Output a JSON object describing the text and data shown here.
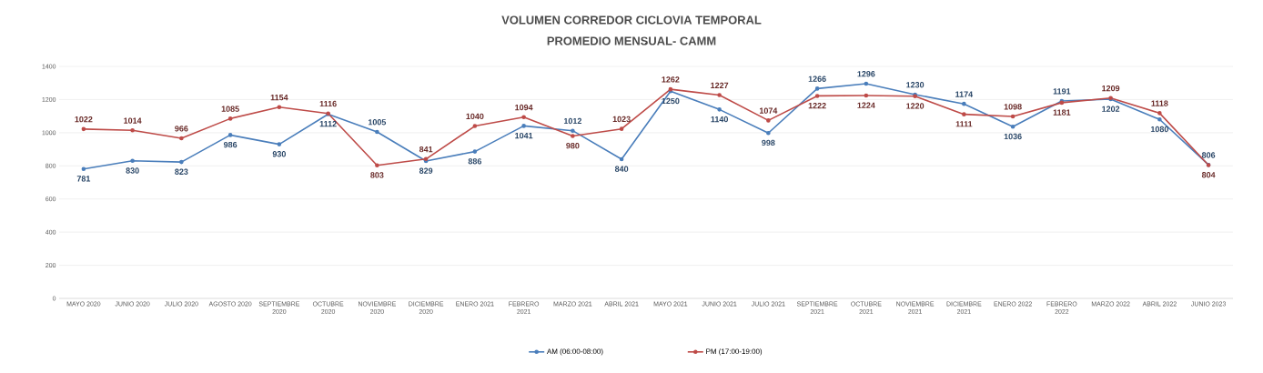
{
  "chart_data": {
    "type": "line",
    "title": "VOLUMEN CORREDOR CICLOVIA TEMPORAL",
    "subtitle": "PROMEDIO MENSUAL- CAMM",
    "categories": [
      "MAYO 2020",
      "JUNIO 2020",
      "JULIO 2020",
      "AGOSTO 2020",
      "SEPTIEMBRE 2020",
      "OCTUBRE 2020",
      "NOVIEMBRE 2020",
      "DICIEMBRE 2020",
      "ENERO 2021",
      "FEBRERO 2021",
      "MARZO 2021",
      "ABRIL 2021",
      "MAYO 2021",
      "JUNIO 2021",
      "JULIO 2021",
      "SEPTIEMBRE 2021",
      "OCTUBRE 2021",
      "NOVIEMBRE 2021",
      "DICIEMBRE 2021",
      "ENERO 2022",
      "FEBRERO 2022",
      "MARZO 2022",
      "ABRIL 2022",
      "JUNIO 2023"
    ],
    "series": [
      {
        "name": "AM (06:00-08:00)",
        "color": "#4a7ebb",
        "values": [
          781,
          830,
          823,
          986,
          930,
          1112,
          1005,
          829,
          886,
          1041,
          1012,
          840,
          1250,
          1140,
          998,
          1266,
          1296,
          1230,
          1174,
          1036,
          1191,
          1202,
          1080,
          806
        ]
      },
      {
        "name": "PM (17:00-19:00)",
        "color": "#be4b48",
        "values": [
          1022,
          1014,
          966,
          1085,
          1154,
          1116,
          803,
          841,
          1040,
          1094,
          980,
          1023,
          1262,
          1227,
          1074,
          1222,
          1224,
          1220,
          1111,
          1098,
          1181,
          1209,
          1118,
          804
        ]
      }
    ],
    "ylim": [
      0,
      1400
    ],
    "yticks": [
      0,
      200,
      400,
      600,
      800,
      1000,
      1200,
      1400
    ],
    "grid": "y",
    "legend": "bottom",
    "marker": "circle",
    "line_style": "solid",
    "data_labels": true
  }
}
